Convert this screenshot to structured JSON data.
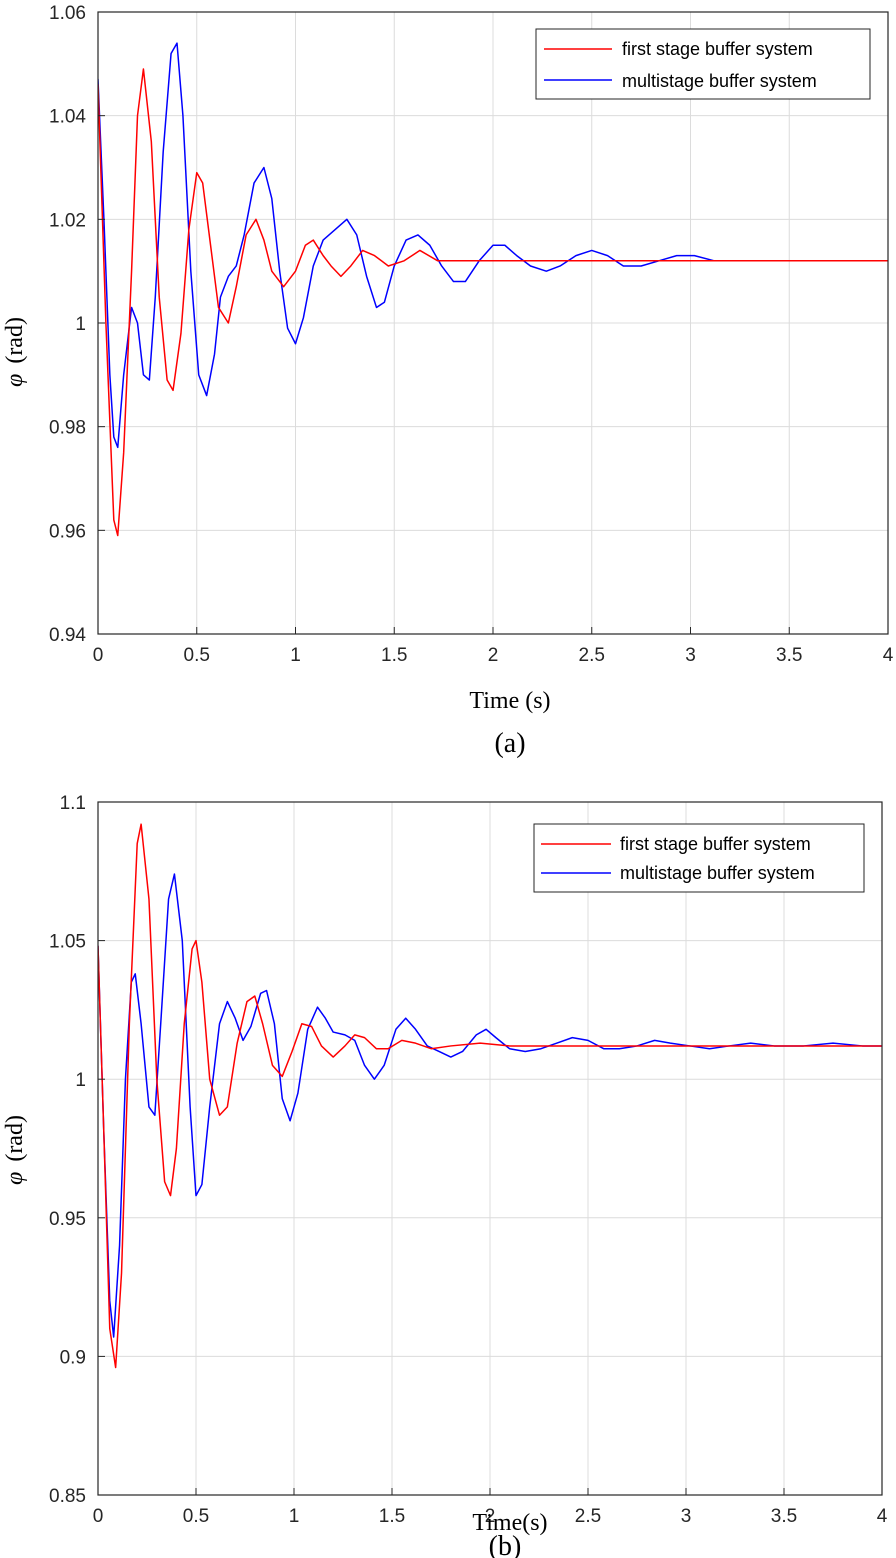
{
  "chart_data": [
    {
      "type": "line",
      "caption": "(a)",
      "xlabel": "Time (s)",
      "ylabel": "φ (rad)",
      "ylabel_symbol": "φ",
      "ylabel_unit": "(rad)",
      "xlim": [
        0,
        4
      ],
      "ylim": [
        0.94,
        1.06
      ],
      "xticks": [
        "0",
        "0.5",
        "1",
        "1.5",
        "2",
        "2.5",
        "3",
        "3.5",
        "4"
      ],
      "xtick_values": [
        0,
        0.5,
        1,
        1.5,
        2,
        2.5,
        3,
        3.5,
        4
      ],
      "yticks": [
        "0.94",
        "0.96",
        "0.98",
        "1",
        "1.02",
        "1.04",
        "1.06"
      ],
      "ytick_values": [
        0.94,
        0.96,
        0.98,
        1.0,
        1.02,
        1.04,
        1.06
      ],
      "grid": true,
      "legend_position": "top-right",
      "series": [
        {
          "name": "first stage buffer system",
          "color": "#ff0000",
          "points": [
            [
              0,
              1.046
            ],
            [
              0.04,
              1.0
            ],
            [
              0.08,
              0.962
            ],
            [
              0.1,
              0.959
            ],
            [
              0.13,
              0.975
            ],
            [
              0.17,
              1.01
            ],
            [
              0.2,
              1.04
            ],
            [
              0.23,
              1.049
            ],
            [
              0.27,
              1.035
            ],
            [
              0.31,
              1.005
            ],
            [
              0.35,
              0.989
            ],
            [
              0.38,
              0.987
            ],
            [
              0.42,
              0.998
            ],
            [
              0.46,
              1.018
            ],
            [
              0.5,
              1.029
            ],
            [
              0.53,
              1.027
            ],
            [
              0.57,
              1.015
            ],
            [
              0.61,
              1.003
            ],
            [
              0.66,
              1.0
            ],
            [
              0.7,
              1.007
            ],
            [
              0.75,
              1.017
            ],
            [
              0.8,
              1.02
            ],
            [
              0.84,
              1.016
            ],
            [
              0.88,
              1.01
            ],
            [
              0.94,
              1.007
            ],
            [
              1.0,
              1.01
            ],
            [
              1.05,
              1.015
            ],
            [
              1.09,
              1.016
            ],
            [
              1.14,
              1.013
            ],
            [
              1.18,
              1.011
            ],
            [
              1.23,
              1.009
            ],
            [
              1.28,
              1.011
            ],
            [
              1.34,
              1.014
            ],
            [
              1.4,
              1.013
            ],
            [
              1.47,
              1.011
            ],
            [
              1.55,
              1.012
            ],
            [
              1.63,
              1.014
            ],
            [
              1.72,
              1.012
            ],
            [
              1.85,
              1.012
            ],
            [
              2.0,
              1.012
            ],
            [
              2.5,
              1.012
            ],
            [
              3.0,
              1.012
            ],
            [
              3.5,
              1.012
            ],
            [
              4.0,
              1.012
            ]
          ]
        },
        {
          "name": "multistage buffer system",
          "color": "#0000ff",
          "points": [
            [
              0,
              1.047
            ],
            [
              0.03,
              1.02
            ],
            [
              0.06,
              0.99
            ],
            [
              0.08,
              0.978
            ],
            [
              0.1,
              0.976
            ],
            [
              0.13,
              0.99
            ],
            [
              0.17,
              1.003
            ],
            [
              0.2,
              1.0
            ],
            [
              0.23,
              0.99
            ],
            [
              0.26,
              0.989
            ],
            [
              0.29,
              1.005
            ],
            [
              0.33,
              1.033
            ],
            [
              0.37,
              1.052
            ],
            [
              0.4,
              1.054
            ],
            [
              0.43,
              1.04
            ],
            [
              0.47,
              1.01
            ],
            [
              0.51,
              0.99
            ],
            [
              0.55,
              0.986
            ],
            [
              0.59,
              0.994
            ],
            [
              0.62,
              1.005
            ],
            [
              0.66,
              1.009
            ],
            [
              0.7,
              1.011
            ],
            [
              0.74,
              1.017
            ],
            [
              0.79,
              1.027
            ],
            [
              0.84,
              1.03
            ],
            [
              0.88,
              1.024
            ],
            [
              0.92,
              1.01
            ],
            [
              0.96,
              0.999
            ],
            [
              1.0,
              0.996
            ],
            [
              1.04,
              1.001
            ],
            [
              1.09,
              1.011
            ],
            [
              1.14,
              1.016
            ],
            [
              1.2,
              1.018
            ],
            [
              1.26,
              1.02
            ],
            [
              1.31,
              1.017
            ],
            [
              1.36,
              1.009
            ],
            [
              1.41,
              1.003
            ],
            [
              1.45,
              1.004
            ],
            [
              1.5,
              1.011
            ],
            [
              1.56,
              1.016
            ],
            [
              1.62,
              1.017
            ],
            [
              1.68,
              1.015
            ],
            [
              1.74,
              1.011
            ],
            [
              1.8,
              1.008
            ],
            [
              1.86,
              1.008
            ],
            [
              1.93,
              1.012
            ],
            [
              2.0,
              1.015
            ],
            [
              2.06,
              1.015
            ],
            [
              2.12,
              1.013
            ],
            [
              2.19,
              1.011
            ],
            [
              2.27,
              1.01
            ],
            [
              2.34,
              1.011
            ],
            [
              2.42,
              1.013
            ],
            [
              2.5,
              1.014
            ],
            [
              2.58,
              1.013
            ],
            [
              2.66,
              1.011
            ],
            [
              2.75,
              1.011
            ],
            [
              2.84,
              1.012
            ],
            [
              2.93,
              1.013
            ],
            [
              3.02,
              1.013
            ],
            [
              3.12,
              1.012
            ],
            [
              3.22,
              1.012
            ],
            [
              3.33,
              1.012
            ],
            [
              3.44,
              1.012
            ],
            [
              3.55,
              1.012
            ],
            [
              3.7,
              1.012
            ],
            [
              3.85,
              1.012
            ],
            [
              4.0,
              1.012
            ]
          ]
        }
      ]
    },
    {
      "type": "line",
      "caption": "(b)",
      "xlabel": "Time(s)",
      "ylabel": "φ (rad)",
      "ylabel_symbol": "φ",
      "ylabel_unit": "(rad)",
      "xlim": [
        0,
        4
      ],
      "ylim": [
        0.85,
        1.1
      ],
      "xticks": [
        "0",
        "0.5",
        "1",
        "1.5",
        "2",
        "2.5",
        "3",
        "3.5",
        "4"
      ],
      "xtick_values": [
        0,
        0.5,
        1,
        1.5,
        2,
        2.5,
        3,
        3.5,
        4
      ],
      "yticks": [
        "0.85",
        "0.9",
        "0.95",
        "1",
        "1.05",
        "1.1"
      ],
      "ytick_values": [
        0.85,
        0.9,
        0.95,
        1.0,
        1.05,
        1.1
      ],
      "grid": true,
      "legend_position": "top-right",
      "series": [
        {
          "name": "first stage buffer system",
          "color": "#ff0000",
          "points": [
            [
              0,
              1.048
            ],
            [
              0.03,
              0.98
            ],
            [
              0.06,
              0.91
            ],
            [
              0.09,
              0.896
            ],
            [
              0.12,
              0.93
            ],
            [
              0.16,
              1.02
            ],
            [
              0.2,
              1.085
            ],
            [
              0.22,
              1.092
            ],
            [
              0.26,
              1.065
            ],
            [
              0.3,
              1.0
            ],
            [
              0.34,
              0.963
            ],
            [
              0.37,
              0.958
            ],
            [
              0.4,
              0.975
            ],
            [
              0.44,
              1.02
            ],
            [
              0.48,
              1.047
            ],
            [
              0.5,
              1.05
            ],
            [
              0.53,
              1.035
            ],
            [
              0.57,
              1.0
            ],
            [
              0.62,
              0.987
            ],
            [
              0.66,
              0.99
            ],
            [
              0.71,
              1.013
            ],
            [
              0.76,
              1.028
            ],
            [
              0.8,
              1.03
            ],
            [
              0.84,
              1.02
            ],
            [
              0.89,
              1.005
            ],
            [
              0.94,
              1.001
            ],
            [
              0.99,
              1.01
            ],
            [
              1.04,
              1.02
            ],
            [
              1.09,
              1.019
            ],
            [
              1.14,
              1.012
            ],
            [
              1.2,
              1.008
            ],
            [
              1.26,
              1.012
            ],
            [
              1.31,
              1.016
            ],
            [
              1.36,
              1.015
            ],
            [
              1.42,
              1.011
            ],
            [
              1.48,
              1.011
            ],
            [
              1.55,
              1.014
            ],
            [
              1.62,
              1.013
            ],
            [
              1.7,
              1.011
            ],
            [
              1.8,
              1.012
            ],
            [
              1.95,
              1.013
            ],
            [
              2.1,
              1.012
            ],
            [
              2.5,
              1.012
            ],
            [
              3.0,
              1.012
            ],
            [
              3.5,
              1.012
            ],
            [
              4.0,
              1.012
            ]
          ]
        },
        {
          "name": "multistage buffer system",
          "color": "#0000ff",
          "points": [
            [
              0,
              1.048
            ],
            [
              0.03,
              0.98
            ],
            [
              0.06,
              0.92
            ],
            [
              0.08,
              0.907
            ],
            [
              0.11,
              0.94
            ],
            [
              0.14,
              1.0
            ],
            [
              0.17,
              1.035
            ],
            [
              0.19,
              1.038
            ],
            [
              0.22,
              1.02
            ],
            [
              0.26,
              0.99
            ],
            [
              0.29,
              0.987
            ],
            [
              0.32,
              1.02
            ],
            [
              0.36,
              1.065
            ],
            [
              0.39,
              1.074
            ],
            [
              0.43,
              1.05
            ],
            [
              0.47,
              0.99
            ],
            [
              0.5,
              0.958
            ],
            [
              0.53,
              0.962
            ],
            [
              0.57,
              0.99
            ],
            [
              0.62,
              1.02
            ],
            [
              0.66,
              1.028
            ],
            [
              0.7,
              1.022
            ],
            [
              0.74,
              1.014
            ],
            [
              0.78,
              1.019
            ],
            [
              0.83,
              1.031
            ],
            [
              0.86,
              1.032
            ],
            [
              0.9,
              1.02
            ],
            [
              0.94,
              0.993
            ],
            [
              0.98,
              0.985
            ],
            [
              1.02,
              0.995
            ],
            [
              1.07,
              1.018
            ],
            [
              1.12,
              1.026
            ],
            [
              1.16,
              1.022
            ],
            [
              1.2,
              1.017
            ],
            [
              1.26,
              1.016
            ],
            [
              1.31,
              1.014
            ],
            [
              1.36,
              1.005
            ],
            [
              1.41,
              1.0
            ],
            [
              1.46,
              1.005
            ],
            [
              1.52,
              1.018
            ],
            [
              1.57,
              1.022
            ],
            [
              1.62,
              1.018
            ],
            [
              1.68,
              1.012
            ],
            [
              1.74,
              1.01
            ],
            [
              1.8,
              1.008
            ],
            [
              1.86,
              1.01
            ],
            [
              1.93,
              1.016
            ],
            [
              1.98,
              1.018
            ],
            [
              2.03,
              1.015
            ],
            [
              2.1,
              1.011
            ],
            [
              2.18,
              1.01
            ],
            [
              2.26,
              1.011
            ],
            [
              2.34,
              1.013
            ],
            [
              2.42,
              1.015
            ],
            [
              2.5,
              1.014
            ],
            [
              2.58,
              1.011
            ],
            [
              2.66,
              1.011
            ],
            [
              2.75,
              1.012
            ],
            [
              2.84,
              1.014
            ],
            [
              2.92,
              1.013
            ],
            [
              3.02,
              1.012
            ],
            [
              3.12,
              1.011
            ],
            [
              3.22,
              1.012
            ],
            [
              3.33,
              1.013
            ],
            [
              3.45,
              1.012
            ],
            [
              3.6,
              1.012
            ],
            [
              3.75,
              1.013
            ],
            [
              3.9,
              1.012
            ],
            [
              4.0,
              1.012
            ]
          ]
        }
      ]
    }
  ]
}
